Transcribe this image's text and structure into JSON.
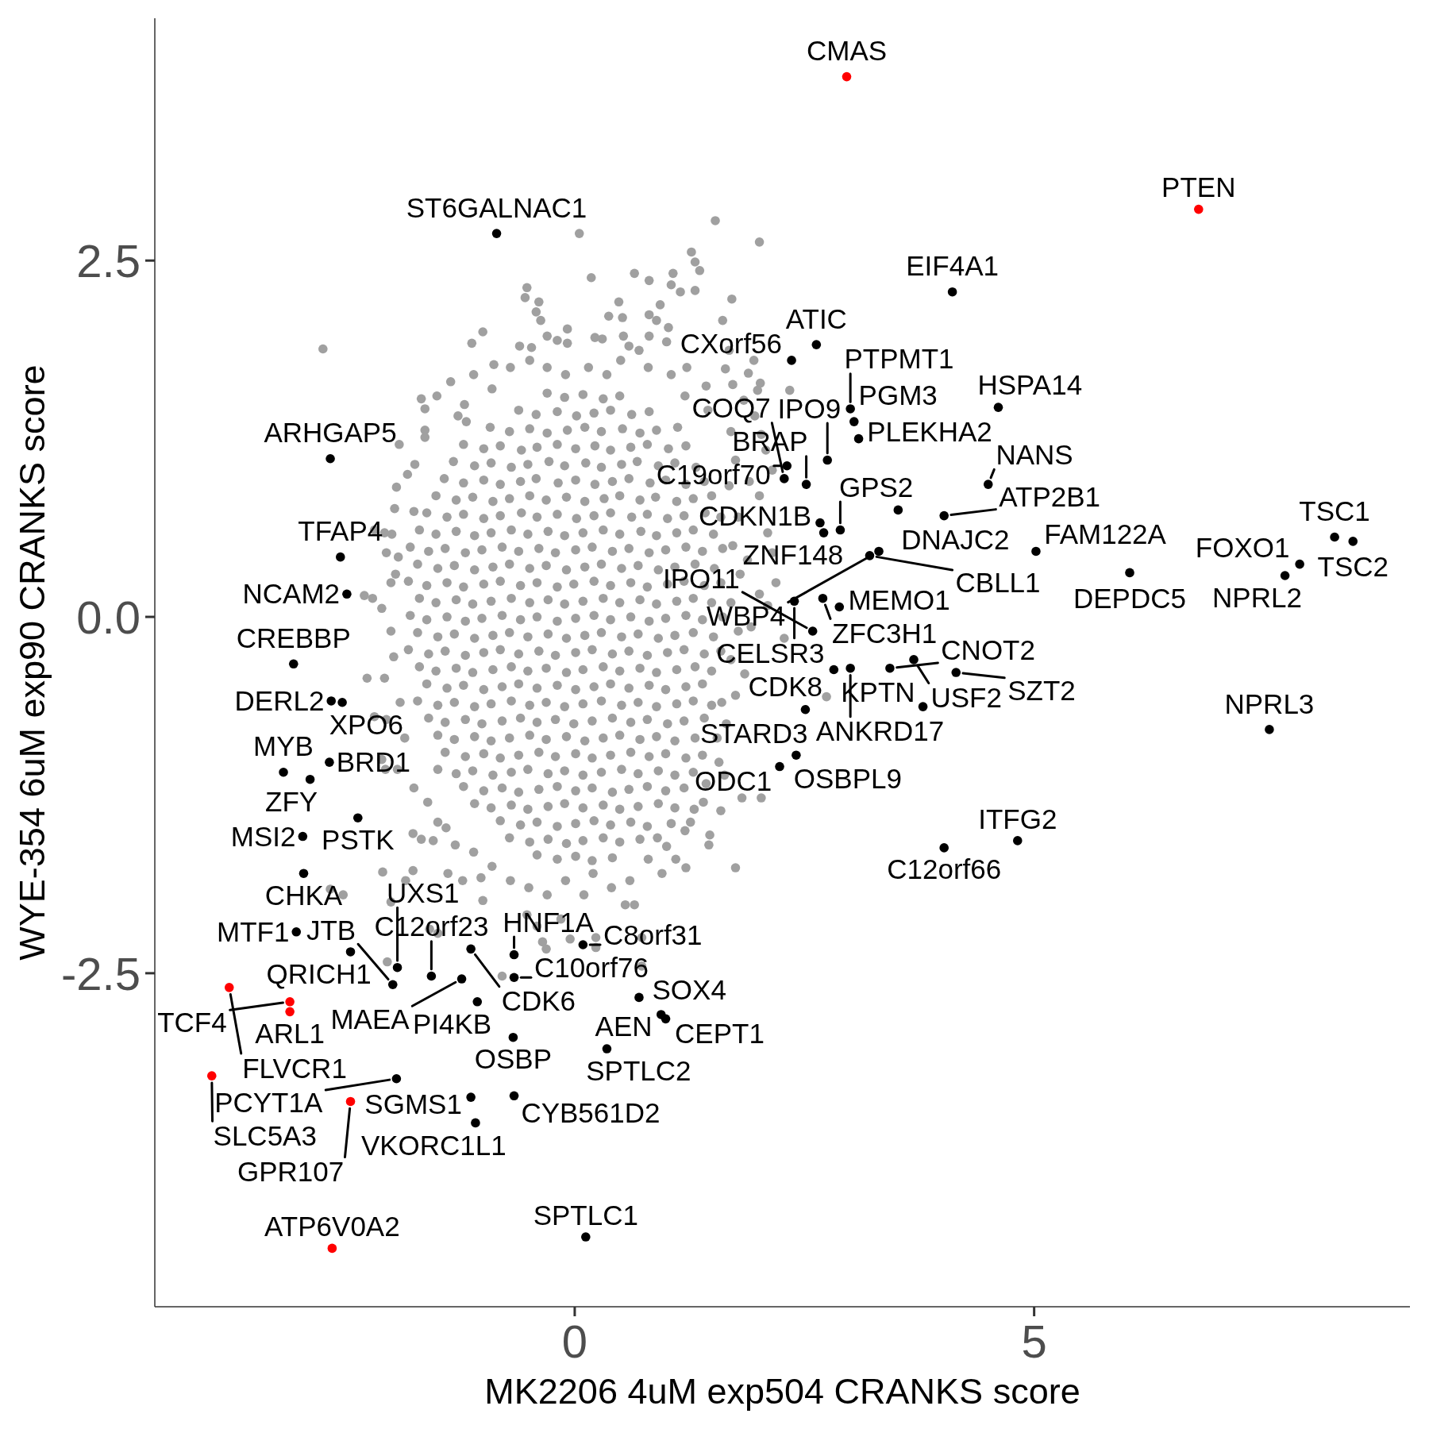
{
  "chart_data": {
    "type": "scatter",
    "xlabel": "MK2206 4uM exp504 CRANKS score",
    "ylabel": "WYE-354 6uM exp90 CRANKS score",
    "xlim": [
      -4.57,
      9.09
    ],
    "ylim": [
      -4.84,
      4.2
    ],
    "xticks": [
      0,
      5
    ],
    "yticks": [
      -2.5,
      {
        "value": 0,
        "label": "0.0"
      },
      2.5
    ],
    "marker": "circle",
    "series": [
      {
        "color": "#a0a0a0",
        "x": [
          -0.3,
          -0.11,
          0.09,
          0.31,
          0.49,
          -0.61,
          -0.42,
          -0.19,
          0.02,
          0.21,
          0.39,
          0.62,
          0.81,
          -0.92,
          -0.71,
          -0.49,
          -0.3,
          -0.08,
          0.11,
          0.29,
          0.52,
          0.71,
          0.89,
          1.12,
          -1.21,
          -0.99,
          -0.81,
          -0.58,
          -0.41,
          -0.19,
          0.01,
          0.22,
          0.39,
          0.61,
          0.79,
          1.02,
          1.21,
          -1.32,
          -1.09,
          -0.91,
          -0.69,
          -0.51,
          -0.28,
          -0.11,
          0.12,
          0.29,
          0.51,
          0.68,
          0.91,
          1.09,
          1.32,
          -1.42,
          -1.21,
          -0.99,
          -0.81,
          -0.59,
          -0.42,
          -0.18,
          0.01,
          0.22,
          0.41,
          0.59,
          0.82,
          0.99,
          1.21,
          1.41,
          -1.51,
          -1.29,
          -1.11,
          -0.89,
          -0.71,
          -0.49,
          -0.31,
          -0.09,
          0.11,
          0.32,
          0.49,
          0.71,
          0.88,
          1.11,
          1.29,
          1.49,
          -1.61,
          -1.39,
          -1.21,
          -0.99,
          -0.81,
          -0.58,
          -0.41,
          -0.19,
          0.02,
          0.21,
          0.39,
          0.62,
          0.79,
          1.01,
          1.19,
          1.42,
          1.59,
          -1.69,
          -1.51,
          -1.29,
          -1.09,
          -0.91,
          -0.69,
          -0.51,
          -0.29,
          -0.11,
          0.09,
          0.31,
          0.49,
          0.72,
          0.89,
          1.11,
          1.29,
          1.51,
          -1.79,
          -1.59,
          -1.41,
          -1.19,
          -1.01,
          -0.79,
          -0.61,
          -0.39,
          -0.21,
          0.01,
          0.19,
          0.41,
          0.59,
          0.81,
          0.99,
          1.21,
          1.39,
          1.61,
          -1.71,
          -1.49,
          -1.31,
          -1.09,
          -0.89,
          -0.71,
          -0.49,
          -0.31,
          -0.09,
          0.11,
          0.29,
          0.51,
          0.69,
          0.91,
          1.09,
          1.31,
          1.52,
          -1.81,
          -1.61,
          -1.39,
          -1.21,
          -0.99,
          -0.81,
          -0.59,
          -0.41,
          -0.19,
          -0.01,
          0.21,
          0.39,
          0.61,
          0.79,
          1.01,
          1.19,
          1.41,
          1.59,
          -1.69,
          -1.51,
          -1.29,
          -1.11,
          -0.91,
          -0.69,
          -0.49,
          -0.29,
          -0.11,
          0.09,
          0.31,
          0.49,
          0.71,
          0.89,
          1.11,
          1.29,
          1.49,
          -1.79,
          -1.61,
          -1.39,
          -1.19,
          -1.01,
          -0.79,
          -0.59,
          -0.41,
          -0.19,
          0.01,
          0.21,
          0.39,
          0.61,
          0.81,
          0.99,
          1.21,
          1.39,
          1.61,
          -1.71,
          -1.49,
          -1.31,
          -1.09,
          -0.89,
          -0.71,
          -0.51,
          -0.29,
          -0.09,
          0.11,
          0.29,
          0.51,
          0.69,
          0.91,
          1.09,
          1.29,
          1.51,
          -1.81,
          -1.59,
          -1.41,
          -1.19,
          -0.99,
          -0.81,
          -0.61,
          -0.39,
          -0.21,
          0.01,
          0.19,
          0.41,
          0.59,
          0.79,
          1.01,
          1.19,
          1.41,
          1.59,
          -1.69,
          -1.51,
          -1.29,
          -1.11,
          -0.89,
          -0.69,
          -0.51,
          -0.31,
          -0.09,
          0.09,
          0.31,
          0.49,
          0.71,
          0.89,
          1.11,
          1.31,
          1.49,
          -1.61,
          -1.39,
          -1.21,
          -0.99,
          -0.79,
          -0.61,
          -0.41,
          -0.19,
          0.01,
          0.21,
          0.39,
          0.59,
          0.81,
          0.99,
          1.21,
          1.39,
          -1.71,
          -1.49,
          -1.31,
          -1.09,
          -0.91,
          -0.69,
          -0.49,
          -0.31,
          -0.11,
          0.09,
          0.29,
          0.51,
          0.69,
          0.89,
          1.11,
          1.29,
          1.49,
          -1.59,
          -1.41,
          -1.19,
          -1.01,
          -0.79,
          -0.59,
          -0.41,
          -0.21,
          -0.01,
          0.19,
          0.41,
          0.61,
          0.79,
          1.01,
          1.19,
          1.41,
          -1.49,
          -1.31,
          -1.09,
          -0.91,
          -0.71,
          -0.49,
          -0.31,
          -0.09,
          0.11,
          0.31,
          0.49,
          0.71,
          0.89,
          1.09,
          1.31,
          -1.41,
          -1.19,
          -0.99,
          -0.81,
          -0.61,
          -0.39,
          -0.21,
          0.01,
          0.19,
          0.39,
          0.61,
          0.81,
          0.99,
          1.21,
          1.39,
          -1.49,
          -1.29,
          -1.11,
          -0.89,
          -0.69,
          -0.51,
          -0.29,
          -0.11,
          0.09,
          0.29,
          0.51,
          0.69,
          0.91,
          1.09,
          1.29,
          -1.21,
          -0.99,
          -0.79,
          -0.61,
          -0.39,
          -0.19,
          0.01,
          0.19,
          0.41,
          0.59,
          0.79,
          0.99,
          1.19,
          -1.09,
          -0.91,
          -0.69,
          -0.51,
          -0.29,
          -0.11,
          0.09,
          0.31,
          0.49,
          0.69,
          0.91,
          1.09,
          -0.81,
          -0.59,
          -0.41,
          -0.19,
          0.01,
          0.21,
          0.39,
          0.61,
          0.79,
          -0.71,
          -0.49,
          -0.29,
          -0.09,
          0.09,
          0.31,
          0.49,
          0.71,
          -0.41,
          -0.19,
          0.01,
          0.19,
          0.41,
          -2.74,
          -0.52,
          -0.54,
          -0.39,
          -0.42,
          -0.37,
          -1.0,
          -1.12,
          -0.08,
          -0.3,
          -0.19,
          -0.08,
          -0.47,
          -0.49,
          -0.88,
          -1.67,
          -1.63,
          -1.2,
          -1.27,
          -1.18,
          -1.63,
          -1.63,
          -1.91,
          -1.74,
          -1.82,
          -1.94,
          -1.96,
          -1.75,
          -2.18,
          -2.07,
          -1.99,
          -1.92,
          -2.0,
          -2.29,
          -2.2,
          -2.1,
          -1.97,
          1.53,
          2.01,
          1.27,
          1.31,
          1.36,
          0.65,
          0.81,
          1.07,
          1.05,
          1.15,
          1.31,
          0.18,
          0.05,
          1.71,
          0.48,
          0.93,
          0.37,
          0.52,
          0.81,
          0.89,
          1.02,
          1.61,
          0.22,
          0.3,
          0.53,
          0.81,
          1.0,
          0.7,
          0.59,
          1.68,
          1.95,
          1.89,
          2.02,
          1.72,
          1.99,
          2.34,
          1.22,
          1.43,
          1.64,
          1.84,
          1.96,
          2.03,
          2.08,
          2.15,
          2.01,
          2.1,
          2.15,
          2.19,
          2.01,
          2.1,
          1.92,
          2.28,
          1.7,
          1.75,
          1.68,
          1.78,
          1.72,
          1.8,
          1.7,
          1.78,
          1.7,
          1.75,
          1.65,
          1.85,
          1.88,
          1.9,
          2.74,
          1.75,
          1.21,
          1.47,
          1.46,
          1.26,
          1.0,
          0.73,
          0.55,
          0.65,
          0.23,
          0.23,
          0.73,
          1.57,
          1.63,
          1.43,
          1.59,
          2.03,
          1.82,
          1.6,
          1.55,
          1.4,
          1.3,
          1.2,
          1.05,
          0.9,
          0.8,
          1.1,
          0.95,
          0.6,
          0.4,
          0.2,
          0.1,
          -2.26,
          -2.07,
          -2.18,
          -2.05,
          -2.1,
          -2.06,
          -1.93,
          -1.76,
          -1.67,
          -1.54,
          -2.09,
          -1.84,
          -1.76,
          -2.66,
          -2.52,
          -2.0,
          -1.58,
          -1.49,
          -2.04,
          -0.79,
          -0.35,
          -0.31,
          -0.05,
          -0.52,
          -0.41,
          -0.15,
          -1.0,
          -1.38,
          -1.22,
          -1.02,
          -1.49,
          -1.4,
          -1.9,
          -1.85,
          -1.75,
          -1.6,
          -1.3,
          -1.1,
          -0.9,
          -0.7,
          -0.5,
          -0.3,
          -0.1,
          -2.0,
          -1.95,
          -2.05,
          -1.5,
          -1.35,
          -1.1,
          -0.9,
          -0.7,
          -0.6,
          -0.3,
          -0.1,
          0.15,
          0.35,
          0.5,
          0.8,
          1.05,
          1.2,
          1.45
        ],
        "values": [
          1.57,
          1.54,
          1.56,
          1.53,
          1.55,
          1.45,
          1.42,
          1.44,
          1.41,
          1.43,
          1.45,
          1.42,
          1.44,
          1.33,
          1.3,
          1.32,
          1.29,
          1.31,
          1.33,
          1.3,
          1.32,
          1.29,
          1.31,
          1.33,
          1.21,
          1.18,
          1.2,
          1.17,
          1.19,
          1.21,
          1.18,
          1.2,
          1.17,
          1.19,
          1.21,
          1.18,
          1.2,
          1.09,
          1.06,
          1.08,
          1.05,
          1.07,
          1.09,
          1.06,
          1.08,
          1.05,
          1.07,
          1.09,
          1.06,
          1.08,
          1.05,
          0.97,
          0.94,
          0.96,
          0.93,
          0.95,
          0.97,
          0.94,
          0.96,
          0.93,
          0.95,
          0.97,
          0.94,
          0.96,
          0.93,
          0.95,
          0.85,
          0.82,
          0.84,
          0.81,
          0.83,
          0.85,
          0.82,
          0.84,
          0.81,
          0.83,
          0.85,
          0.82,
          0.84,
          0.81,
          0.83,
          0.85,
          0.73,
          0.7,
          0.72,
          0.69,
          0.71,
          0.73,
          0.7,
          0.72,
          0.69,
          0.71,
          0.73,
          0.7,
          0.72,
          0.69,
          0.71,
          0.73,
          0.7,
          0.61,
          0.58,
          0.6,
          0.57,
          0.59,
          0.61,
          0.58,
          0.6,
          0.57,
          0.59,
          0.61,
          0.58,
          0.6,
          0.57,
          0.59,
          0.61,
          0.58,
          0.49,
          0.46,
          0.48,
          0.45,
          0.47,
          0.49,
          0.46,
          0.48,
          0.45,
          0.47,
          0.49,
          0.46,
          0.48,
          0.45,
          0.47,
          0.49,
          0.46,
          0.48,
          0.37,
          0.34,
          0.36,
          0.33,
          0.35,
          0.37,
          0.34,
          0.36,
          0.33,
          0.35,
          0.37,
          0.34,
          0.36,
          0.33,
          0.35,
          0.37,
          0.34,
          0.25,
          0.22,
          0.24,
          0.21,
          0.23,
          0.25,
          0.22,
          0.24,
          0.21,
          0.23,
          0.25,
          0.22,
          0.24,
          0.21,
          0.23,
          0.25,
          0.22,
          0.24,
          0.13,
          0.1,
          0.12,
          0.09,
          0.11,
          0.13,
          0.1,
          0.12,
          0.09,
          0.11,
          0.13,
          0.1,
          0.12,
          0.09,
          0.11,
          0.13,
          0.1,
          0.01,
          -0.02,
          0,
          -0.03,
          -0.01,
          0.01,
          -0.02,
          0,
          -0.03,
          -0.01,
          0.01,
          -0.02,
          0,
          -0.03,
          -0.01,
          0.01,
          -0.02,
          0,
          -0.11,
          -0.14,
          -0.12,
          -0.15,
          -0.13,
          -0.11,
          -0.14,
          -0.12,
          -0.15,
          -0.13,
          -0.11,
          -0.14,
          -0.12,
          -0.15,
          -0.13,
          -0.11,
          -0.14,
          -0.23,
          -0.26,
          -0.24,
          -0.27,
          -0.25,
          -0.23,
          -0.26,
          -0.24,
          -0.27,
          -0.25,
          -0.23,
          -0.26,
          -0.24,
          -0.27,
          -0.25,
          -0.23,
          -0.26,
          -0.24,
          -0.35,
          -0.38,
          -0.36,
          -0.39,
          -0.37,
          -0.35,
          -0.38,
          -0.36,
          -0.39,
          -0.37,
          -0.35,
          -0.38,
          -0.36,
          -0.39,
          -0.37,
          -0.35,
          -0.38,
          -0.47,
          -0.5,
          -0.48,
          -0.51,
          -0.49,
          -0.47,
          -0.5,
          -0.48,
          -0.51,
          -0.49,
          -0.47,
          -0.5,
          -0.48,
          -0.51,
          -0.49,
          -0.47,
          -0.59,
          -0.62,
          -0.6,
          -0.63,
          -0.61,
          -0.59,
          -0.62,
          -0.6,
          -0.63,
          -0.61,
          -0.59,
          -0.62,
          -0.6,
          -0.63,
          -0.61,
          -0.59,
          -0.62,
          -0.71,
          -0.74,
          -0.72,
          -0.75,
          -0.73,
          -0.71,
          -0.74,
          -0.72,
          -0.75,
          -0.73,
          -0.71,
          -0.74,
          -0.72,
          -0.75,
          -0.73,
          -0.71,
          -0.83,
          -0.86,
          -0.84,
          -0.87,
          -0.85,
          -0.83,
          -0.86,
          -0.84,
          -0.87,
          -0.85,
          -0.83,
          -0.86,
          -0.84,
          -0.87,
          -0.85,
          -0.95,
          -0.98,
          -0.96,
          -0.99,
          -0.97,
          -0.95,
          -0.98,
          -0.96,
          -0.99,
          -0.97,
          -0.95,
          -0.98,
          -0.96,
          -0.99,
          -0.97,
          -1.07,
          -1.1,
          -1.08,
          -1.11,
          -1.09,
          -1.07,
          -1.1,
          -1.08,
          -1.11,
          -1.09,
          -1.07,
          -1.1,
          -1.08,
          -1.11,
          -1.09,
          -1.19,
          -1.22,
          -1.2,
          -1.23,
          -1.21,
          -1.19,
          -1.22,
          -1.2,
          -1.23,
          -1.21,
          -1.19,
          -1.22,
          -1.2,
          -1.31,
          -1.34,
          -1.32,
          -1.35,
          -1.33,
          -1.31,
          -1.34,
          -1.32,
          -1.35,
          -1.33,
          -1.31,
          -1.34,
          -1.43,
          -1.46,
          -1.44,
          -1.47,
          -1.45,
          -1.43,
          -1.46,
          -1.44,
          -1.47,
          -1.55,
          -1.58,
          -1.56,
          -1.59,
          -1.57,
          -1.55,
          -1.58,
          -1.56,
          -1.67,
          -1.7,
          -1.68,
          -1.71,
          -1.69,
          1.88,
          2.31,
          2.24,
          2.21,
          2.14,
          2.08,
          2.0,
          1.92,
          2.02,
          1.97,
          1.94,
          1.92,
          1.89,
          1.8,
          1.77,
          1.53,
          1.46,
          1.49,
          1.41,
          1.37,
          1.31,
          1.26,
          1.21,
          1.07,
          1.0,
          0.91,
          0.76,
          0.74,
          0.61,
          0.59,
          0.58,
          0.42,
          0.24,
          0.15,
          0.13,
          0.06,
          -0.28,
          2.78,
          2.63,
          2.56,
          2.49,
          2.43,
          2.41,
          2.36,
          2.41,
          2.33,
          2.28,
          2.29,
          2.38,
          2.69,
          2.23,
          2.21,
          2.19,
          2.11,
          2.1,
          2.12,
          2.08,
          2.03,
          2.08,
          1.96,
          1.95,
          1.97,
          1.97,
          1.93,
          1.87,
          1.9,
          1.87,
          1.8,
          1.71,
          1.64,
          1.63,
          1.59,
          1.59,
          1.75,
          1.62,
          1.74,
          1.52,
          1.41,
          1.28,
          1.17,
          1.03,
          0.85,
          0.59,
          0.45,
          0.24,
          0.16,
          0.08,
          -0.07,
          -0.15,
          1.3,
          1.1,
          0.92,
          0.7,
          0.5,
          0.3,
          0.1,
          -0.1,
          -0.3,
          -0.55,
          -0.75,
          -0.4,
          0.4,
          0.95,
          -0.56,
          -1.76,
          -1.76,
          -1.53,
          -1.6,
          -1.44,
          -1.61,
          -2.25,
          -2.02,
          -2.02,
          -2.32,
          -2.25,
          -2.45,
          -1.02,
          -1.11,
          -1.17,
          -1.36,
          -1.27,
          -1.27,
          -0.6,
          -0.85,
          -1.3,
          -1.35,
          -1.5,
          -1.45,
          -1.55,
          -1.7,
          -1.7,
          -1.8,
          -1.85,
          -1.9,
          -1.8,
          -1.95,
          -0.43,
          -0.43,
          -0.7,
          -0.72,
          -1.0,
          -1.07,
          -1.07,
          -1.52,
          -1.56,
          -1.57,
          -1.79,
          -1.85,
          -1.78,
          -1.91,
          -1.95,
          -2.0,
          -2.19,
          -2.22,
          -2.42,
          -2.52,
          -2.28,
          -2.33,
          -2.26,
          -2.09,
          -2.17,
          -2.12,
          -1.99,
          -1.8,
          -1.85,
          -1.83,
          -1.44,
          -1.48,
          -0.6,
          -0.85,
          -1.2,
          -1.3,
          -1.6,
          -1.65,
          -1.75,
          -1.85,
          -1.9,
          -1.95,
          -1.85,
          -0.1,
          0.3,
          0.45,
          1.55,
          1.65,
          1.7,
          1.6,
          1.75,
          1.9,
          1.75,
          1.7,
          1.75,
          1.7,
          1.8,
          1.75,
          1.7,
          1.55,
          1.45
        ]
      },
      {
        "color": "#000000",
        "x": [
          -0.85,
          4.11,
          2.63,
          2.36,
          3.0,
          4.61,
          3.04,
          3.09,
          -2.66,
          2.75,
          2.31,
          2.28,
          2.52,
          4.5,
          3.52,
          4.02,
          2.67,
          2.89,
          2.71,
          8.27,
          8.47,
          3.31,
          5.02,
          3.21,
          -2.55,
          7.89,
          6.04,
          7.73,
          -2.48,
          2.7,
          2.39,
          2.88,
          2.59,
          3.69,
          -3.06,
          3.0,
          3.43,
          2.82,
          4.15,
          -2.65,
          -2.53,
          3.79,
          2.51,
          7.56,
          2.41,
          -2.67,
          2.23,
          -3.17,
          -2.88,
          -2.36,
          -2.96,
          4.82,
          4.02,
          -2.95,
          -3.03,
          0.09,
          -1.13,
          -2.44,
          -0.66,
          -1.93,
          -1.56,
          -0.66,
          -1.23,
          -1.98,
          0.7,
          -1.06,
          0.94,
          0.99,
          -0.67,
          0.35,
          -1.94,
          -0.66,
          -1.13,
          -1.08,
          0.12
        ],
        "values": [
          2.69,
          2.28,
          1.91,
          1.8,
          1.46,
          1.47,
          1.37,
          1.25,
          1.11,
          1.1,
          1.06,
          0.97,
          0.93,
          0.93,
          0.75,
          0.71,
          0.66,
          0.61,
          0.59,
          0.56,
          0.53,
          0.46,
          0.46,
          0.43,
          0.42,
          0.37,
          0.31,
          0.29,
          0.16,
          0.13,
          0.11,
          0.07,
          -0.1,
          -0.3,
          -0.33,
          -0.36,
          -0.36,
          -0.37,
          -0.39,
          -0.59,
          -0.6,
          -0.63,
          -0.65,
          -0.79,
          -0.97,
          -1.02,
          -1.05,
          -1.09,
          -1.14,
          -1.41,
          -1.54,
          -1.57,
          -1.62,
          -1.8,
          -2.21,
          -2.3,
          -2.33,
          -2.35,
          -2.37,
          -2.46,
          -2.52,
          -2.53,
          -2.54,
          -2.58,
          -2.67,
          -2.7,
          -2.79,
          -2.82,
          -2.95,
          -3.03,
          -3.24,
          -3.36,
          -3.37,
          -3.55,
          -4.35
        ]
      },
      {
        "color": "#ff0000",
        "x": [
          2.96,
          6.79,
          -3.76,
          -3.1,
          -3.1,
          -3.95,
          -2.44,
          -2.64
        ],
        "values": [
          3.79,
          2.86,
          -2.6,
          -2.7,
          -2.77,
          -3.22,
          -3.4,
          -4.43
        ]
      }
    ],
    "annotations": [
      {
        "text": "CMAS",
        "x": 2.96,
        "y": 3.79
      },
      {
        "text": "PTEN",
        "x": 6.79,
        "y": 2.86
      },
      {
        "text": "ST6GALNAC1",
        "x": -0.85,
        "y": 2.69
      },
      {
        "text": "EIF4A1",
        "x": 4.11,
        "y": 2.28
      },
      {
        "text": "ATIC",
        "x": 2.63,
        "y": 1.91
      },
      {
        "text": "CXorf56",
        "x": 2.36,
        "y": 1.8
      },
      {
        "text": "PTPMT1",
        "x": 3.0,
        "y": 1.46
      },
      {
        "text": "HSPA14",
        "x": 4.61,
        "y": 1.47
      },
      {
        "text": "PGM3",
        "x": 3.04,
        "y": 1.37
      },
      {
        "text": "PLEKHA2",
        "x": 3.09,
        "y": 1.25
      },
      {
        "text": "ARHGAP5",
        "x": -2.66,
        "y": 1.11
      },
      {
        "text": "IPO9",
        "x": 2.75,
        "y": 1.1
      },
      {
        "text": "C19orf70",
        "x": 2.31,
        "y": 1.06
      },
      {
        "text": "COQ7",
        "x": 2.28,
        "y": 0.97
      },
      {
        "text": "BRAP",
        "x": 2.52,
        "y": 0.93
      },
      {
        "text": "NANS",
        "x": 4.5,
        "y": 0.93
      },
      {
        "text": "DNAJC2",
        "x": 3.52,
        "y": 0.75
      },
      {
        "text": "ATP2B1",
        "x": 4.02,
        "y": 0.71
      },
      {
        "text": "CDKN1B",
        "x": 2.67,
        "y": 0.66
      },
      {
        "text": "GPS2",
        "x": 2.89,
        "y": 0.61
      },
      {
        "text": "ZNF148",
        "x": 2.71,
        "y": 0.59
      },
      {
        "text": "TSC1",
        "x": 8.27,
        "y": 0.56
      },
      {
        "text": "TSC2",
        "x": 8.47,
        "y": 0.53
      },
      {
        "text": "WBP4",
        "x": 3.31,
        "y": 0.46
      },
      {
        "text": "FAM122A",
        "x": 5.02,
        "y": 0.46
      },
      {
        "text": "CBLL1",
        "x": 3.21,
        "y": 0.43
      },
      {
        "text": "TFAP4",
        "x": -2.55,
        "y": 0.42
      },
      {
        "text": "FOXO1",
        "x": 7.89,
        "y": 0.37
      },
      {
        "text": "DEPDC5",
        "x": 6.04,
        "y": 0.31
      },
      {
        "text": "NPRL2",
        "x": 7.73,
        "y": 0.29
      },
      {
        "text": "NCAM2",
        "x": -2.48,
        "y": 0.16
      },
      {
        "text": "ZFC3H1",
        "x": 2.7,
        "y": 0.13
      },
      {
        "text": "CELSR3",
        "x": 2.39,
        "y": 0.11
      },
      {
        "text": "MEMO1",
        "x": 2.88,
        "y": 0.07
      },
      {
        "text": "IPO11",
        "x": 2.59,
        "y": -0.1
      },
      {
        "text": "USF2",
        "x": 3.69,
        "y": -0.3
      },
      {
        "text": "CREBBP",
        "x": -3.06,
        "y": -0.33
      },
      {
        "text": "ANKRD17",
        "x": 3.0,
        "y": -0.36
      },
      {
        "text": "CNOT2",
        "x": 3.43,
        "y": -0.36
      },
      {
        "text": "CDK8",
        "x": 2.82,
        "y": -0.37
      },
      {
        "text": "SZT2",
        "x": 4.15,
        "y": -0.39
      },
      {
        "text": "DERL2",
        "x": -2.65,
        "y": -0.59
      },
      {
        "text": "XPO6",
        "x": -2.53,
        "y": -0.6
      },
      {
        "text": "KPTN",
        "x": 3.79,
        "y": -0.63
      },
      {
        "text": "STARD3",
        "x": 2.51,
        "y": -0.65
      },
      {
        "text": "NPRL3",
        "x": 7.56,
        "y": -0.79
      },
      {
        "text": "OSBPL9",
        "x": 2.41,
        "y": -0.97
      },
      {
        "text": "BRD1",
        "x": -2.67,
        "y": -1.02
      },
      {
        "text": "ODC1",
        "x": 2.23,
        "y": -1.05
      },
      {
        "text": "MYB",
        "x": -3.17,
        "y": -1.09
      },
      {
        "text": "ZFY",
        "x": -2.88,
        "y": -1.14
      },
      {
        "text": "PSTK",
        "x": -2.36,
        "y": -1.41
      },
      {
        "text": "MSI2",
        "x": -2.96,
        "y": -1.54
      },
      {
        "text": "ITFG2",
        "x": 4.82,
        "y": -1.57
      },
      {
        "text": "C12orf66",
        "x": 4.02,
        "y": -1.62
      },
      {
        "text": "CHKA",
        "x": -2.95,
        "y": -1.8
      },
      {
        "text": "MTF1",
        "x": -3.03,
        "y": -2.21
      },
      {
        "text": "C8orf31",
        "x": 0.09,
        "y": -2.3
      },
      {
        "text": "CDK6",
        "x": -1.13,
        "y": -2.33
      },
      {
        "text": "QRICH1",
        "x": -2.44,
        "y": -2.35
      },
      {
        "text": "HNF1A",
        "x": -0.66,
        "y": -2.37
      },
      {
        "text": "UXS1",
        "x": -1.93,
        "y": -2.46
      },
      {
        "text": "C12orf23",
        "x": -1.56,
        "y": -2.52
      },
      {
        "text": "C10orf76",
        "x": -0.66,
        "y": -2.53
      },
      {
        "text": "MAEA",
        "x": -1.23,
        "y": -2.54
      },
      {
        "text": "JTB",
        "x": -1.98,
        "y": -2.58
      },
      {
        "text": "FLVCR1",
        "x": -3.76,
        "y": -2.6
      },
      {
        "text": "SOX4",
        "x": 0.7,
        "y": -2.67
      },
      {
        "text": "PI4KB",
        "x": -1.06,
        "y": -2.7
      },
      {
        "text": "TCF4",
        "x": -3.1,
        "y": -2.7
      },
      {
        "text": "ARL1",
        "x": -3.1,
        "y": -2.77
      },
      {
        "text": "CEPT1",
        "x": 0.94,
        "y": -2.79
      },
      {
        "text": "AEN",
        "x": 0.99,
        "y": -2.82
      },
      {
        "text": "OSBP",
        "x": -0.67,
        "y": -2.95
      },
      {
        "text": "SPTLC2",
        "x": 0.35,
        "y": -3.03
      },
      {
        "text": "SLC5A3",
        "x": -3.95,
        "y": -3.22
      },
      {
        "text": "PCYT1A",
        "x": -1.94,
        "y": -3.24
      },
      {
        "text": "CYB561D2",
        "x": -0.66,
        "y": -3.36
      },
      {
        "text": "SGMS1",
        "x": -1.13,
        "y": -3.37
      },
      {
        "text": "GPR107",
        "x": -2.44,
        "y": -3.4
      },
      {
        "text": "VKORC1L1",
        "x": -1.08,
        "y": -3.55
      },
      {
        "text": "SPTLC1",
        "x": 0.12,
        "y": -4.35
      },
      {
        "text": "ATP6V0A2",
        "x": -2.64,
        "y": -4.43
      }
    ]
  }
}
